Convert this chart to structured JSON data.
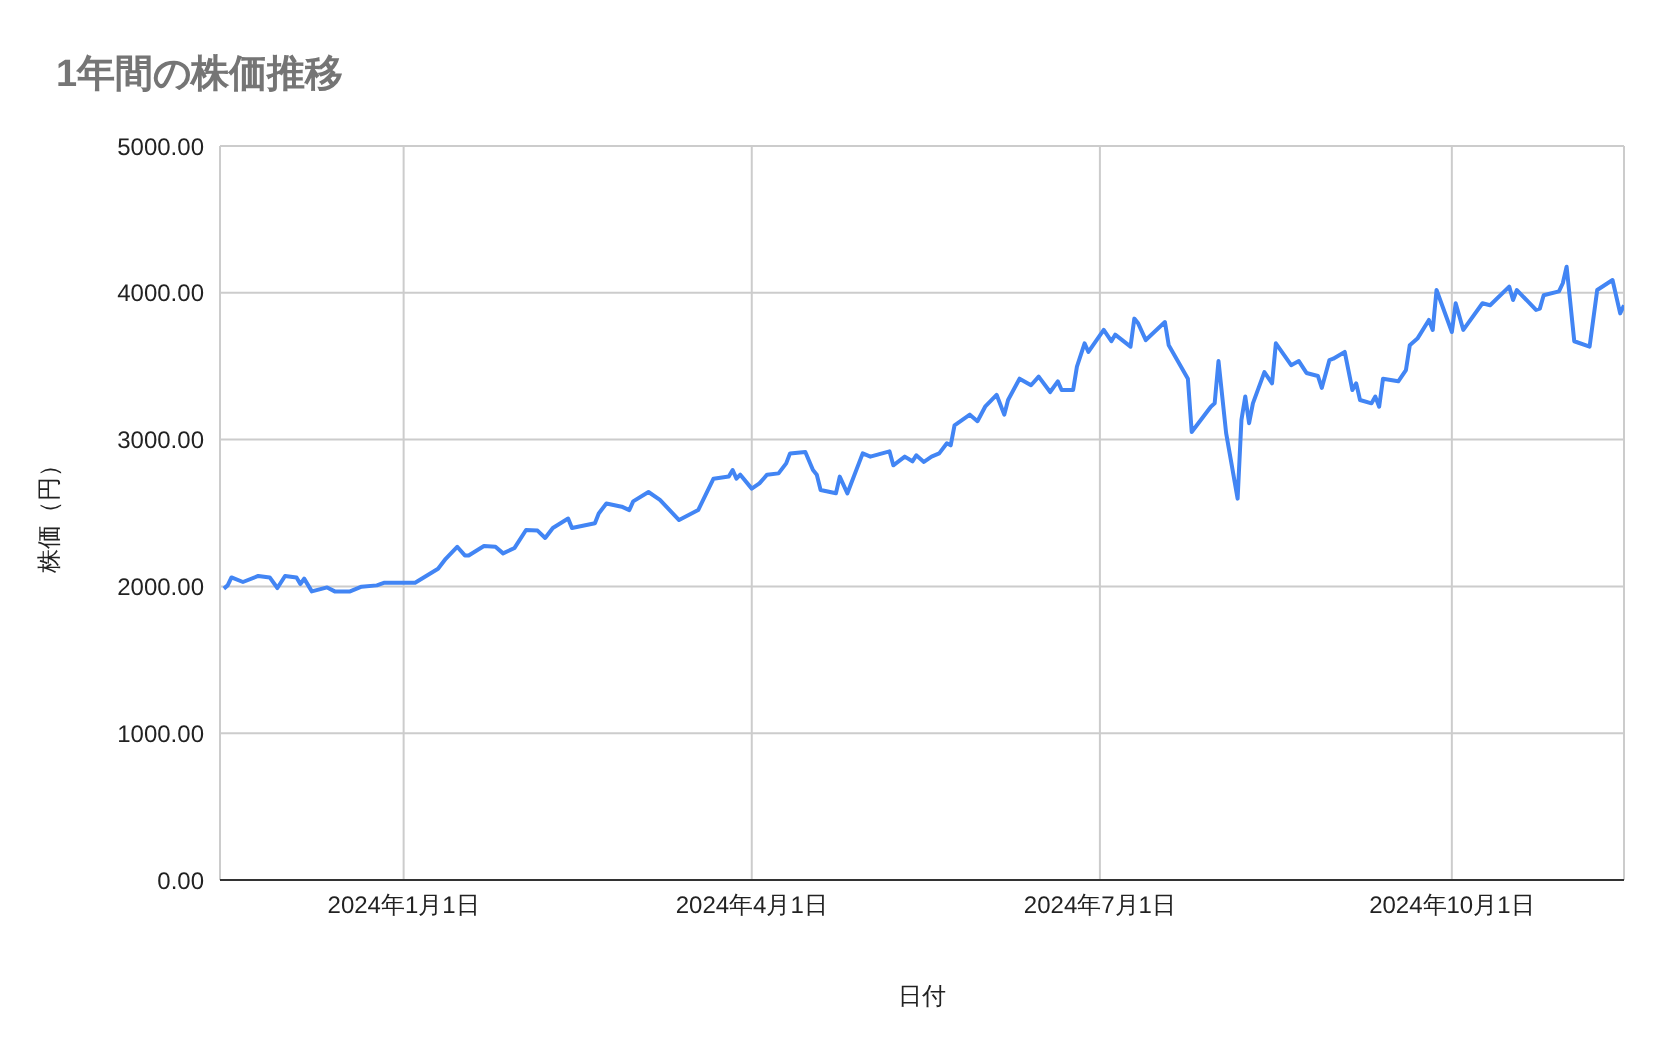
{
  "chart_data": {
    "type": "line",
    "title": "1年間の株価推移",
    "xlabel": "日付",
    "ylabel": "株価（円）",
    "xlim": [
      "2023-11-14",
      "2024-11-15"
    ],
    "xticks": [
      {
        "value": "2024-01-01",
        "label": "2024年1月1日"
      },
      {
        "value": "2024-04-01",
        "label": "2024年4月1日"
      },
      {
        "value": "2024-07-01",
        "label": "2024年7月1日"
      },
      {
        "value": "2024-10-01",
        "label": "2024年10月1日"
      }
    ],
    "ylim": [
      0,
      5000
    ],
    "yticks": [
      {
        "value": 0,
        "label": "0.00"
      },
      {
        "value": 1000,
        "label": "1000.00"
      },
      {
        "value": 2000,
        "label": "2000.00"
      },
      {
        "value": 3000,
        "label": "3000.00"
      },
      {
        "value": 4000,
        "label": "4000.00"
      },
      {
        "value": 5000,
        "label": "5000.00"
      }
    ],
    "grid": true,
    "legend": false,
    "marker": "none",
    "line_style": "solid",
    "x": [
      "2023-11-15",
      "2023-11-16",
      "2023-11-17",
      "2023-11-20",
      "2023-11-24",
      "2023-11-27",
      "2023-11-29",
      "2023-12-01",
      "2023-12-04",
      "2023-12-05",
      "2023-12-06",
      "2023-12-08",
      "2023-12-12",
      "2023-12-14",
      "2023-12-18",
      "2023-12-21",
      "2023-12-25",
      "2023-12-27",
      "2024-01-04",
      "2024-01-10",
      "2024-01-12",
      "2024-01-15",
      "2024-01-17",
      "2024-01-18",
      "2024-01-22",
      "2024-01-25",
      "2024-01-27",
      "2024-01-30",
      "2024-02-02",
      "2024-02-05",
      "2024-02-07",
      "2024-02-09",
      "2024-02-13",
      "2024-02-14",
      "2024-02-20",
      "2024-02-21",
      "2024-02-23",
      "2024-02-27",
      "2024-02-29",
      "2024-03-01",
      "2024-03-05",
      "2024-03-08",
      "2024-03-13",
      "2024-03-18",
      "2024-03-22",
      "2024-03-26",
      "2024-03-27",
      "2024-03-28",
      "2024-03-29",
      "2024-04-01",
      "2024-04-03",
      "2024-04-05",
      "2024-04-08",
      "2024-04-10",
      "2024-04-11",
      "2024-04-15",
      "2024-04-17",
      "2024-04-18",
      "2024-04-19",
      "2024-04-23",
      "2024-04-24",
      "2024-04-26",
      "2024-04-30",
      "2024-05-02",
      "2024-05-07",
      "2024-05-08",
      "2024-05-11",
      "2024-05-13",
      "2024-05-14",
      "2024-05-16",
      "2024-05-18",
      "2024-05-20",
      "2024-05-22",
      "2024-05-23",
      "2024-05-24",
      "2024-05-28",
      "2024-05-30",
      "2024-06-01",
      "2024-06-04",
      "2024-06-06",
      "2024-06-07",
      "2024-06-10",
      "2024-06-13",
      "2024-06-15",
      "2024-06-18",
      "2024-06-20",
      "2024-06-21",
      "2024-06-24",
      "2024-06-25",
      "2024-06-27",
      "2024-06-28",
      "2024-07-02",
      "2024-07-04",
      "2024-07-05",
      "2024-07-09",
      "2024-07-10",
      "2024-07-11",
      "2024-07-13",
      "2024-07-18",
      "2024-07-19",
      "2024-07-24",
      "2024-07-25",
      "2024-07-30",
      "2024-07-31",
      "2024-08-01",
      "2024-08-03",
      "2024-08-06",
      "2024-08-07",
      "2024-08-08",
      "2024-08-09",
      "2024-08-10",
      "2024-08-13",
      "2024-08-15",
      "2024-08-16",
      "2024-08-20",
      "2024-08-22",
      "2024-08-24",
      "2024-08-27",
      "2024-08-28",
      "2024-08-30",
      "2024-08-31",
      "2024-09-03",
      "2024-09-05",
      "2024-09-06",
      "2024-09-07",
      "2024-09-10",
      "2024-09-11",
      "2024-09-12",
      "2024-09-13",
      "2024-09-17",
      "2024-09-19",
      "2024-09-20",
      "2024-09-22",
      "2024-09-25",
      "2024-09-26",
      "2024-09-27",
      "2024-10-01",
      "2024-10-02",
      "2024-10-04",
      "2024-10-09",
      "2024-10-11",
      "2024-10-16",
      "2024-10-17",
      "2024-10-18",
      "2024-10-23",
      "2024-10-24",
      "2024-10-25",
      "2024-10-29",
      "2024-10-30",
      "2024-10-31",
      "2024-11-02",
      "2024-11-06",
      "2024-11-08",
      "2024-11-12",
      "2024-11-14",
      "2024-11-15"
    ],
    "series": [
      {
        "color": "#4285f4",
        "values": [
          1985,
          2007,
          2061,
          2030,
          2071,
          2061,
          1989,
          2071,
          2061,
          2016,
          2053,
          1966,
          1993,
          1966,
          1966,
          1998,
          2007,
          2025,
          2025,
          2120,
          2188,
          2270,
          2211,
          2211,
          2275,
          2270,
          2225,
          2262,
          2384,
          2380,
          2330,
          2398,
          2462,
          2398,
          2430,
          2497,
          2565,
          2543,
          2520,
          2579,
          2643,
          2589,
          2452,
          2520,
          2734,
          2748,
          2793,
          2734,
          2761,
          2666,
          2702,
          2761,
          2770,
          2838,
          2906,
          2916,
          2793,
          2761,
          2657,
          2634,
          2748,
          2634,
          2906,
          2884,
          2920,
          2825,
          2884,
          2852,
          2893,
          2848,
          2884,
          2906,
          2975,
          2961,
          3097,
          3170,
          3125,
          3224,
          3305,
          3170,
          3270,
          3415,
          3370,
          3429,
          3324,
          3397,
          3338,
          3338,
          3497,
          3656,
          3597,
          3747,
          3670,
          3715,
          3633,
          3824,
          3792,
          3678,
          3801,
          3642,
          3415,
          3052,
          3224,
          3247,
          3535,
          3044,
          2598,
          3134,
          3293,
          3112,
          3247,
          3460,
          3383,
          3656,
          3507,
          3535,
          3454,
          3433,
          3352,
          3542,
          3551,
          3597,
          3338,
          3383,
          3270,
          3247,
          3293,
          3224,
          3415,
          3397,
          3474,
          3642,
          3688,
          3815,
          3747,
          4019,
          3733,
          3929,
          3747,
          3929,
          3915,
          4042,
          3951,
          4019,
          3883,
          3892,
          3983,
          4010,
          4065,
          4178,
          3670,
          3633,
          4019,
          4087,
          3860,
          3915
        ]
      }
    ]
  }
}
